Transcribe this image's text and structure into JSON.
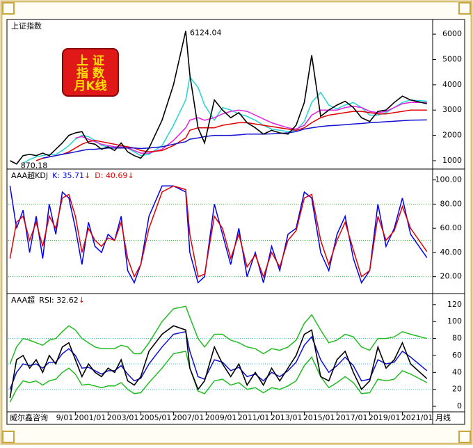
{
  "source": "威尔鑫咨询",
  "badge": [
    "上 证",
    "指 数",
    "月K线"
  ],
  "x_axis": {
    "label": "月线",
    "xlim": [
      1996.9,
      2022.85
    ],
    "xticks": [
      {
        "value": 1999,
        "label": "9/01"
      },
      {
        "value": 2001,
        "label": "2001/01"
      },
      {
        "value": 2003,
        "label": "2003/01"
      },
      {
        "value": 2005,
        "label": "2005/01"
      },
      {
        "value": 2007,
        "label": "2007/01"
      },
      {
        "value": 2009,
        "label": "2009/01"
      },
      {
        "value": 2011,
        "label": "2011/01"
      },
      {
        "value": 2013,
        "label": "2013/01"
      },
      {
        "value": 2015,
        "label": "2015/01"
      },
      {
        "value": 2017,
        "label": "2017/01"
      },
      {
        "value": 2019,
        "label": "2019/01"
      },
      {
        "value": 2021,
        "label": "2021/01"
      }
    ],
    "x": [
      1997.0,
      1997.4,
      1997.8,
      1998.2,
      1998.6,
      1999.0,
      1999.4,
      1999.8,
      2000.2,
      2000.6,
      2001.0,
      2001.4,
      2001.8,
      2002.2,
      2002.6,
      2003.0,
      2003.4,
      2003.8,
      2004.2,
      2004.6,
      2005.0,
      2005.5,
      2006.3,
      2007.0,
      2007.75,
      2008.0,
      2008.5,
      2008.9,
      2009.5,
      2010.0,
      2010.5,
      2011.0,
      2011.5,
      2012.0,
      2012.5,
      2013.0,
      2013.5,
      2014.0,
      2014.5,
      2015.0,
      2015.45,
      2016.0,
      2016.5,
      2017.0,
      2017.5,
      2018.0,
      2018.5,
      2019.0,
      2019.5,
      2020.0,
      2020.5,
      2021.0,
      2021.5,
      2022.5
    ]
  },
  "chart_data": [
    {
      "type": "line",
      "title": "上证指数",
      "ylim": [
        670,
        6580
      ],
      "yticks": [
        1000,
        2000,
        3000,
        4000,
        5000,
        6000
      ],
      "annotations": [
        {
          "text": "6124.04",
          "x": 2007.75,
          "y": 6124.04
        },
        {
          "text": "870.18",
          "x": 1997.4,
          "y": 870.18
        }
      ],
      "series": [
        {
          "color": "#22d3d3",
          "values": [
            null,
            null,
            900,
            1050,
            1150,
            1200,
            1250,
            1250,
            1400,
            1600,
            1850,
            2000,
            1950,
            1800,
            1600,
            1550,
            1500,
            1550,
            1500,
            1350,
            1200,
            1250,
            1600,
            2400,
            3400,
            4300,
            3900,
            3200,
            2600,
            3100,
            3000,
            2850,
            2750,
            2600,
            2400,
            2250,
            2200,
            2150,
            2200,
            2550,
            3300,
            3700,
            3200,
            3050,
            3200,
            3300,
            3100,
            2800,
            2800,
            2900,
            3100,
            3300,
            3400,
            3350
          ]
        },
        {
          "color": "#e020e0",
          "values": [
            null,
            null,
            null,
            null,
            null,
            null,
            null,
            null,
            null,
            null,
            1900,
            1950,
            1850,
            1750,
            1650,
            1600,
            1550,
            1550,
            1500,
            1400,
            1300,
            1300,
            1450,
            1800,
            2300,
            2600,
            2700,
            2600,
            2700,
            2850,
            2950,
            3000,
            2950,
            2800,
            2650,
            2500,
            2400,
            2300,
            2250,
            2400,
            2800,
            3000,
            3000,
            3000,
            3100,
            3150,
            3100,
            2950,
            2900,
            2950,
            3100,
            3250,
            3300,
            3300
          ]
        },
        {
          "color": "#e00000",
          "values": [
            null,
            null,
            null,
            null,
            1000,
            1100,
            1150,
            1200,
            1250,
            1350,
            1500,
            1650,
            1750,
            1800,
            1750,
            1700,
            1650,
            1600,
            1550,
            1500,
            1400,
            1350,
            1400,
            1600,
            1900,
            2200,
            2300,
            2300,
            2300,
            2400,
            2450,
            2500,
            2500,
            2450,
            2400,
            2350,
            2300,
            2250,
            2200,
            2300,
            2500,
            2700,
            2800,
            2850,
            2900,
            2950,
            2950,
            2900,
            2850,
            2850,
            2900,
            2950,
            3000,
            3000
          ]
        },
        {
          "color": "#1010d0",
          "values": [
            null,
            null,
            null,
            null,
            null,
            1100,
            1150,
            1200,
            1250,
            1300,
            1350,
            1400,
            1450,
            1450,
            1480,
            1500,
            1500,
            1500,
            1500,
            1500,
            1480,
            1500,
            1550,
            1650,
            1750,
            1850,
            1900,
            1950,
            2000,
            2000,
            2000,
            2020,
            2050,
            2050,
            2050,
            2060,
            2080,
            2100,
            2150,
            2250,
            2300,
            2350,
            2380,
            2400,
            2420,
            2450,
            2470,
            2500,
            2520,
            2540,
            2560,
            2580,
            2600,
            2610
          ]
        },
        {
          "color": "#000000",
          "values": [
            1000,
            870.18,
            1200,
            1250,
            1200,
            1300,
            1200,
            1450,
            1700,
            2000,
            2100,
            2150,
            1700,
            1650,
            1450,
            1550,
            1400,
            1700,
            1350,
            1200,
            1100,
            1500,
            2600,
            4000,
            6124.04,
            4400,
            2300,
            1700,
            3400,
            3000,
            2700,
            2900,
            2500,
            2300,
            2050,
            2200,
            2100,
            2050,
            2400,
            3300,
            5166,
            2750,
            3000,
            3200,
            3350,
            3100,
            2700,
            2550,
            2950,
            3000,
            3300,
            3550,
            3400,
            3250
          ]
        }
      ]
    },
    {
      "type": "line",
      "title": "AAA超KDJ",
      "trend_mark": "↓",
      "ylim": [
        6,
        109
      ],
      "yticks": [
        {
          "value": 20,
          "label": "20.00"
        },
        {
          "value": 40,
          "label": "40.00"
        },
        {
          "value": 60,
          "label": "60.00"
        },
        {
          "value": 80,
          "label": "80.00"
        },
        {
          "value": 100,
          "label": "100.00"
        }
      ],
      "guides": [
        80,
        50,
        20
      ],
      "guide_color": "#2cc02c",
      "series": [
        {
          "name": "K: 35.71",
          "color": "#0000ee",
          "values": [
            95,
            60,
            75,
            40,
            70,
            35,
            80,
            55,
            90,
            85,
            60,
            30,
            65,
            45,
            40,
            55,
            50,
            70,
            25,
            15,
            30,
            70,
            95,
            95,
            90,
            40,
            15,
            20,
            80,
            55,
            30,
            60,
            20,
            40,
            15,
            45,
            25,
            55,
            60,
            90,
            85,
            40,
            25,
            55,
            70,
            35,
            15,
            25,
            80,
            45,
            60,
            85,
            55,
            35.71
          ]
        },
        {
          "name": "D: 40.69",
          "color": "#e00000",
          "values": [
            35,
            65,
            70,
            50,
            65,
            45,
            70,
            60,
            85,
            88,
            70,
            40,
            60,
            50,
            45,
            52,
            50,
            65,
            35,
            20,
            30,
            60,
            90,
            95,
            92,
            55,
            20,
            22,
            70,
            60,
            35,
            55,
            28,
            38,
            20,
            40,
            28,
            50,
            58,
            85,
            88,
            50,
            30,
            50,
            65,
            42,
            20,
            25,
            70,
            50,
            58,
            78,
            60,
            40.69
          ]
        }
      ]
    },
    {
      "type": "line",
      "title": "AAA超",
      "trend_mark": "↓",
      "ylim": [
        -6.5,
        133
      ],
      "yticks": [
        0,
        20,
        40,
        60,
        80,
        100,
        120
      ],
      "guides": [
        80,
        50,
        20
      ],
      "guide_color": "#22c8d8",
      "series": [
        {
          "color": "#22bb22",
          "values": [
            50,
            70,
            80,
            78,
            75,
            72,
            78,
            80,
            88,
            95,
            90,
            80,
            75,
            70,
            68,
            68,
            68,
            72,
            70,
            62,
            62,
            75,
            100,
            115,
            118,
            105,
            80,
            70,
            85,
            85,
            78,
            75,
            70,
            68,
            62,
            68,
            66,
            70,
            78,
            98,
            108,
            90,
            75,
            78,
            85,
            82,
            70,
            66,
            80,
            80,
            82,
            88,
            85,
            80
          ]
        },
        {
          "color": "#22bb22",
          "values": [
            5,
            20,
            30,
            28,
            30,
            25,
            30,
            32,
            40,
            45,
            38,
            25,
            26,
            24,
            22,
            24,
            24,
            28,
            20,
            15,
            16,
            28,
            45,
            62,
            65,
            45,
            18,
            15,
            30,
            32,
            25,
            28,
            20,
            22,
            16,
            22,
            20,
            24,
            30,
            48,
            58,
            35,
            22,
            28,
            35,
            28,
            15,
            16,
            32,
            30,
            32,
            42,
            38,
            28
          ]
        },
        {
          "color": "#1010d0",
          "values": [
            20,
            40,
            50,
            48,
            50,
            45,
            52,
            52,
            62,
            68,
            60,
            45,
            46,
            42,
            38,
            42,
            42,
            48,
            38,
            30,
            33,
            50,
            70,
            85,
            88,
            65,
            35,
            32,
            55,
            52,
            42,
            46,
            35,
            38,
            30,
            40,
            35,
            42,
            52,
            72,
            82,
            55,
            40,
            48,
            58,
            48,
            30,
            32,
            55,
            50,
            52,
            65,
            58,
            42
          ]
        },
        {
          "name": "RSI: 32.62",
          "color": "#000000",
          "values": [
            10,
            55,
            60,
            45,
            55,
            40,
            60,
            50,
            70,
            75,
            55,
            35,
            50,
            40,
            35,
            45,
            40,
            55,
            30,
            25,
            35,
            65,
            85,
            95,
            90,
            45,
            20,
            30,
            70,
            50,
            35,
            50,
            25,
            40,
            25,
            45,
            30,
            45,
            60,
            85,
            90,
            35,
            30,
            55,
            65,
            40,
            20,
            30,
            70,
            45,
            55,
            75,
            50,
            32.62
          ]
        }
      ]
    }
  ]
}
